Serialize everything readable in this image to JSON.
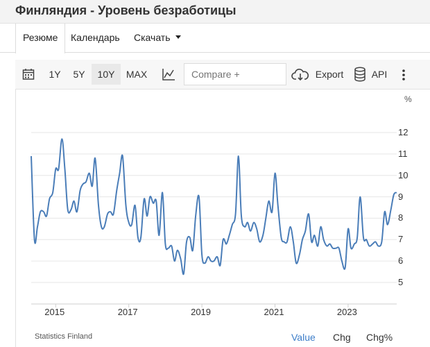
{
  "header": {
    "title": "Финляндия - Уровень безработицы"
  },
  "tabs": [
    {
      "label": "Резюме",
      "active": true
    },
    {
      "label": "Календарь",
      "active": false
    },
    {
      "label": "Скачать",
      "active": false
    }
  ],
  "toolbar": {
    "calendar_icon": "calendar-icon",
    "ranges": [
      {
        "label": "1Y",
        "active": false
      },
      {
        "label": "5Y",
        "active": false
      },
      {
        "label": "10Y",
        "active": true
      },
      {
        "label": "MAX",
        "active": false
      }
    ],
    "chart_type_icon": "line-chart-icon",
    "compare_placeholder": "Compare +",
    "export_label": "Export",
    "export_icon": "cloud-download-icon",
    "api_label": "API",
    "api_icon": "database-icon",
    "more_icon": "more-vertical-icon"
  },
  "footer": {
    "source": "Statistics Finland",
    "buttons": [
      {
        "label": "Value",
        "active": true
      },
      {
        "label": "Chg",
        "active": false
      },
      {
        "label": "Chg%",
        "active": false
      }
    ]
  },
  "colors": {
    "line": "#4a7db8",
    "active_link": "#3d7ec9",
    "grid": "#e6e6e6"
  },
  "chart_data": {
    "type": "line",
    "unit_label": "%",
    "ylim": [
      4,
      12.5
    ],
    "yticks": [
      5,
      6,
      7,
      8,
      9,
      10,
      11,
      12
    ],
    "xlim": [
      2014.33,
      2024.33
    ],
    "xticks": [
      2015,
      2017,
      2019,
      2021,
      2023
    ],
    "grid": "horizontal",
    "series": [
      {
        "x": [
          2014.33,
          2014.42,
          2014.5,
          2014.58,
          2014.67,
          2014.75,
          2014.83,
          2014.92,
          2015.0,
          2015.08,
          2015.17,
          2015.25,
          2015.33,
          2015.42,
          2015.5,
          2015.58,
          2015.67,
          2015.75,
          2015.83,
          2015.92,
          2016.0,
          2016.08,
          2016.17,
          2016.25,
          2016.33,
          2016.42,
          2016.5,
          2016.58,
          2016.67,
          2016.75,
          2016.83,
          2016.92,
          2017.0,
          2017.08,
          2017.17,
          2017.25,
          2017.33,
          2017.42,
          2017.5,
          2017.58,
          2017.67,
          2017.75,
          2017.83,
          2017.92,
          2018.0,
          2018.08,
          2018.17,
          2018.25,
          2018.33,
          2018.42,
          2018.5,
          2018.58,
          2018.67,
          2018.75,
          2018.83,
          2018.92,
          2019.0,
          2019.08,
          2019.17,
          2019.25,
          2019.33,
          2019.42,
          2019.5,
          2019.58,
          2019.67,
          2019.75,
          2019.83,
          2019.92,
          2020.0,
          2020.08,
          2020.17,
          2020.25,
          2020.33,
          2020.42,
          2020.5,
          2020.58,
          2020.67,
          2020.75,
          2020.83,
          2020.92,
          2021.0,
          2021.08,
          2021.17,
          2021.25,
          2021.33,
          2021.42,
          2021.5,
          2021.58,
          2021.67,
          2021.75,
          2021.83,
          2021.92,
          2022.0,
          2022.08,
          2022.17,
          2022.25,
          2022.33,
          2022.42,
          2022.5,
          2022.58,
          2022.67,
          2022.75,
          2022.83,
          2022.92,
          2023.0,
          2023.08,
          2023.17,
          2023.25,
          2023.33,
          2023.42,
          2023.5,
          2023.58,
          2023.67,
          2023.75,
          2023.83,
          2023.92,
          2024.0,
          2024.08,
          2024.17,
          2024.25,
          2024.33
        ],
        "y": [
          10.9,
          7.0,
          7.6,
          8.3,
          8.3,
          8.1,
          8.9,
          9.2,
          10.3,
          10.3,
          11.7,
          10.3,
          8.4,
          8.4,
          8.8,
          8.3,
          9.3,
          9.6,
          9.7,
          10.1,
          9.5,
          10.8,
          8.6,
          7.6,
          7.6,
          8.2,
          8.3,
          8.2,
          9.3,
          10.1,
          10.9,
          8.6,
          7.8,
          7.7,
          8.6,
          7.1,
          7.1,
          8.9,
          8.1,
          9.0,
          8.7,
          8.8,
          7.2,
          9.2,
          6.8,
          6.6,
          6.7,
          6.0,
          6.5,
          6.1,
          5.4,
          6.9,
          7.1,
          6.5,
          8.1,
          9.0,
          6.3,
          5.9,
          6.2,
          6.0,
          6.0,
          6.2,
          5.8,
          7.0,
          6.8,
          7.2,
          7.7,
          8.2,
          10.9,
          8.1,
          7.6,
          7.8,
          7.4,
          7.8,
          7.5,
          6.9,
          7.2,
          8.0,
          8.8,
          8.3,
          10.1,
          8.6,
          7.1,
          6.9,
          6.9,
          7.6,
          6.9,
          5.9,
          6.3,
          7.0,
          7.4,
          8.2,
          6.9,
          7.2,
          6.7,
          7.6,
          7.0,
          6.7,
          6.8,
          6.6,
          6.6,
          6.6,
          6.0,
          5.7,
          7.5,
          6.6,
          6.8,
          7.1,
          9.0,
          7.1,
          7.0,
          6.7,
          6.8,
          6.9,
          6.7,
          6.9,
          8.3,
          7.7,
          8.4,
          9.1,
          9.2
        ]
      }
    ]
  }
}
